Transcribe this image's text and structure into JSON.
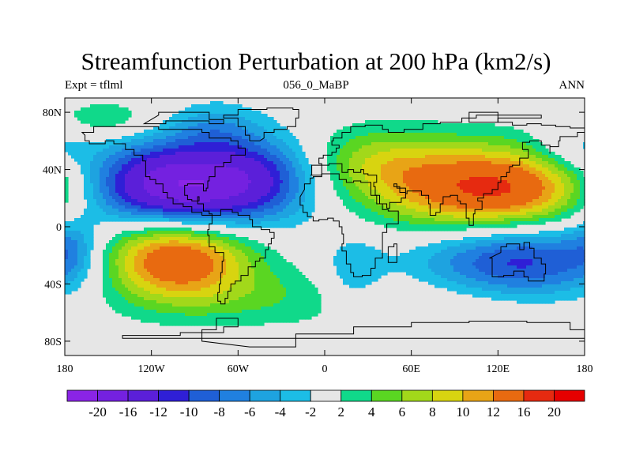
{
  "header": {
    "title": "Streamfunction Perturbation at 200 hPa (km2/s)",
    "left_label": "Expt = tflml",
    "center_label": "056_0_MaBP",
    "right_label": "ANN"
  },
  "map": {
    "lon_range": [
      -180,
      180
    ],
    "lat_range": [
      -90,
      90
    ],
    "lon_ticks": [
      {
        "lon": -180,
        "label": "180"
      },
      {
        "lon": -120,
        "label": "120W"
      },
      {
        "lon": -60,
        "label": "60W"
      },
      {
        "lon": 0,
        "label": "0"
      },
      {
        "lon": 60,
        "label": "60E"
      },
      {
        "lon": 120,
        "label": "120E"
      },
      {
        "lon": 180,
        "label": "180"
      }
    ],
    "lat_ticks": [
      {
        "lat": 80,
        "label": "80N"
      },
      {
        "lat": 40,
        "label": "40N"
      },
      {
        "lat": 0,
        "label": "0"
      },
      {
        "lat": -40,
        "label": "40S"
      },
      {
        "lat": -80,
        "label": "80S"
      }
    ],
    "background_color": "#e6e6e6",
    "contour_fields": [
      {
        "name": "north-pacific-low",
        "lon": -100,
        "lat": 27,
        "value": -22,
        "sx": 50,
        "sy": 22
      },
      {
        "name": "south-pacific-high",
        "lon": -105,
        "lat": -20,
        "value": 17,
        "sx": 38,
        "sy": 22
      },
      {
        "name": "asia-high",
        "lon": 120,
        "lat": 25,
        "value": 18,
        "sx": 55,
        "sy": 22
      },
      {
        "name": "south-indian-low",
        "lon": 135,
        "lat": -22,
        "value": -12,
        "sx": 50,
        "sy": 22
      },
      {
        "name": "atlantic-low",
        "lon": -40,
        "lat": 40,
        "value": -4,
        "sx": 25,
        "sy": 18
      },
      {
        "name": "europe-high",
        "lon": 35,
        "lat": 45,
        "value": 6,
        "sx": 35,
        "sy": 18
      },
      {
        "name": "arctic-pacific-high",
        "lon": -150,
        "lat": 75,
        "value": 4,
        "sx": 25,
        "sy": 10
      },
      {
        "name": "arctic-north-america-low",
        "lon": -75,
        "lat": 70,
        "value": -4,
        "sx": 22,
        "sy": 12
      },
      {
        "name": "south-atlantic-high",
        "lon": -40,
        "lat": -50,
        "value": 3,
        "sx": 50,
        "sy": 15
      },
      {
        "name": "southern-ocean-high",
        "lon": 100,
        "lat": -55,
        "value": 3,
        "sx": 60,
        "sy": 15
      },
      {
        "name": "africa-low",
        "lon": 20,
        "lat": -35,
        "value": -4,
        "sx": 15,
        "sy": 20
      },
      {
        "name": "east-pacific-low",
        "lon": 170,
        "lat": 55,
        "value": -4,
        "sx": 20,
        "sy": 12
      },
      {
        "name": "west-pacific-low",
        "lon": -175,
        "lat": -15,
        "value": -4,
        "sx": 12,
        "sy": 15
      }
    ],
    "coastline_color": "#000000"
  },
  "colorbar": {
    "levels": [
      "-20",
      "-16",
      "-12",
      "-10",
      "-8",
      "-6",
      "-4",
      "-2",
      "2",
      "4",
      "6",
      "8",
      "10",
      "12",
      "16",
      "20"
    ],
    "level_values": [
      -20,
      -16,
      -12,
      -10,
      -8,
      -6,
      -4,
      -2,
      2,
      4,
      6,
      8,
      10,
      12,
      16,
      20
    ],
    "colors": [
      "#8a24e6",
      "#7421e0",
      "#5b1fd9",
      "#2f1fd6",
      "#1f5fd6",
      "#2080e0",
      "#1ea3e0",
      "#1cbde6",
      "#e6e6e6",
      "#10d98a",
      "#5ad622",
      "#a2d81a",
      "#d8d410",
      "#e8a416",
      "#e86a10",
      "#e62a10",
      "#e60000"
    ]
  }
}
